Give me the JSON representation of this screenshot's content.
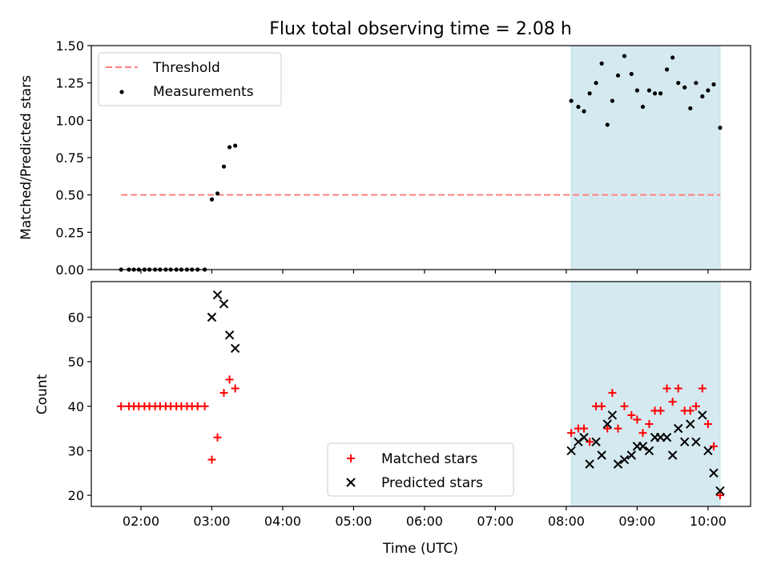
{
  "title": "Flux total observing time = 2.08 h",
  "chart_data": [
    {
      "type": "scatter",
      "panel": "top",
      "title": "Flux total observing time = 2.08 h",
      "ylabel": "Matched/Predicted stars",
      "xlabel": "",
      "x_ticks": [
        "02:00",
        "03:00",
        "04:00",
        "05:00",
        "06:00",
        "07:00",
        "08:00",
        "09:00",
        "10:00"
      ],
      "x_tick_hours": [
        2,
        3,
        4,
        5,
        6,
        7,
        8,
        9,
        10
      ],
      "xlim_hours": [
        1.3,
        10.6
      ],
      "ylim": [
        0,
        1.5
      ],
      "y_ticks": [
        "0.00",
        "0.25",
        "0.50",
        "0.75",
        "1.00",
        "1.25",
        "1.50"
      ],
      "y_tick_values": [
        0,
        0.25,
        0.5,
        0.75,
        1.0,
        1.25,
        1.5
      ],
      "shaded_region_hours": [
        8.07,
        10.17
      ],
      "shaded_color": "#d5eaf0",
      "threshold": {
        "name": "Threshold",
        "value": 0.5,
        "x_hours": [
          1.72,
          10.17
        ],
        "color": "#ff7f7f",
        "style": "dashed"
      },
      "legend": {
        "placement": "top-left",
        "entries": [
          "Threshold",
          "Measurements"
        ]
      },
      "series": [
        {
          "name": "Measurements",
          "color": "#000000",
          "marker": "dot",
          "points": [
            [
              1.72,
              0.0
            ],
            [
              1.83,
              0.0
            ],
            [
              1.9,
              0.0
            ],
            [
              1.97,
              0.0
            ],
            [
              2.05,
              0.0
            ],
            [
              2.12,
              0.0
            ],
            [
              2.2,
              0.0
            ],
            [
              2.27,
              0.0
            ],
            [
              2.35,
              0.0
            ],
            [
              2.42,
              0.0
            ],
            [
              2.5,
              0.0
            ],
            [
              2.57,
              0.0
            ],
            [
              2.65,
              0.0
            ],
            [
              2.72,
              0.0
            ],
            [
              2.8,
              0.0
            ],
            [
              2.9,
              0.0
            ],
            [
              3.0,
              0.47
            ],
            [
              3.08,
              0.51
            ],
            [
              3.17,
              0.69
            ],
            [
              3.25,
              0.82
            ],
            [
              3.33,
              0.83
            ],
            [
              8.07,
              1.13
            ],
            [
              8.17,
              1.09
            ],
            [
              8.25,
              1.06
            ],
            [
              8.33,
              1.18
            ],
            [
              8.42,
              1.25
            ],
            [
              8.5,
              1.38
            ],
            [
              8.58,
              0.97
            ],
            [
              8.65,
              1.13
            ],
            [
              8.73,
              1.3
            ],
            [
              8.82,
              1.43
            ],
            [
              8.92,
              1.31
            ],
            [
              9.0,
              1.2
            ],
            [
              9.08,
              1.09
            ],
            [
              9.17,
              1.2
            ],
            [
              9.25,
              1.18
            ],
            [
              9.33,
              1.18
            ],
            [
              9.42,
              1.34
            ],
            [
              9.5,
              1.42
            ],
            [
              9.58,
              1.25
            ],
            [
              9.67,
              1.22
            ],
            [
              9.75,
              1.08
            ],
            [
              9.83,
              1.25
            ],
            [
              9.92,
              1.16
            ],
            [
              10.0,
              1.2
            ],
            [
              10.08,
              1.24
            ],
            [
              10.17,
              0.95
            ]
          ]
        }
      ]
    },
    {
      "type": "scatter",
      "panel": "bottom",
      "xlabel": "Time (UTC)",
      "ylabel": "Count",
      "x_ticks": [
        "02:00",
        "03:00",
        "04:00",
        "05:00",
        "06:00",
        "07:00",
        "08:00",
        "09:00",
        "10:00"
      ],
      "x_tick_hours": [
        2,
        3,
        4,
        5,
        6,
        7,
        8,
        9,
        10
      ],
      "xlim_hours": [
        1.3,
        10.6
      ],
      "ylim": [
        17.5,
        68
      ],
      "y_ticks": [
        "20",
        "30",
        "40",
        "50",
        "60"
      ],
      "y_tick_values": [
        20,
        30,
        40,
        50,
        60
      ],
      "shaded_region_hours": [
        8.07,
        10.17
      ],
      "shaded_color": "#d5eaf0",
      "legend": {
        "placement": "lower-center",
        "entries": [
          "Matched stars",
          "Predicted stars"
        ]
      },
      "series": [
        {
          "name": "Matched stars",
          "color": "#ff0000",
          "marker": "plus",
          "points": [
            [
              1.72,
              40
            ],
            [
              1.83,
              40
            ],
            [
              1.9,
              40
            ],
            [
              1.97,
              40
            ],
            [
              2.05,
              40
            ],
            [
              2.12,
              40
            ],
            [
              2.2,
              40
            ],
            [
              2.27,
              40
            ],
            [
              2.35,
              40
            ],
            [
              2.42,
              40
            ],
            [
              2.5,
              40
            ],
            [
              2.57,
              40
            ],
            [
              2.65,
              40
            ],
            [
              2.72,
              40
            ],
            [
              2.8,
              40
            ],
            [
              2.9,
              40
            ],
            [
              3.0,
              28
            ],
            [
              3.08,
              33
            ],
            [
              3.17,
              43
            ],
            [
              3.25,
              46
            ],
            [
              3.33,
              44
            ],
            [
              8.07,
              34
            ],
            [
              8.17,
              35
            ],
            [
              8.25,
              35
            ],
            [
              8.33,
              32
            ],
            [
              8.42,
              40
            ],
            [
              8.5,
              40
            ],
            [
              8.58,
              35
            ],
            [
              8.65,
              43
            ],
            [
              8.73,
              35
            ],
            [
              8.82,
              40
            ],
            [
              8.92,
              38
            ],
            [
              9.0,
              37
            ],
            [
              9.08,
              34
            ],
            [
              9.17,
              36
            ],
            [
              9.25,
              39
            ],
            [
              9.33,
              39
            ],
            [
              9.42,
              44
            ],
            [
              9.5,
              41
            ],
            [
              9.58,
              44
            ],
            [
              9.67,
              39
            ],
            [
              9.75,
              39
            ],
            [
              9.83,
              40
            ],
            [
              9.92,
              44
            ],
            [
              10.0,
              36
            ],
            [
              10.08,
              31
            ],
            [
              10.17,
              20
            ]
          ]
        },
        {
          "name": "Predicted stars",
          "color": "#000000",
          "marker": "x",
          "points": [
            [
              3.0,
              60
            ],
            [
              3.08,
              65
            ],
            [
              3.17,
              63
            ],
            [
              3.25,
              56
            ],
            [
              3.33,
              53
            ],
            [
              8.07,
              30
            ],
            [
              8.17,
              32
            ],
            [
              8.25,
              33
            ],
            [
              8.33,
              27
            ],
            [
              8.42,
              32
            ],
            [
              8.5,
              29
            ],
            [
              8.58,
              36
            ],
            [
              8.65,
              38
            ],
            [
              8.73,
              27
            ],
            [
              8.82,
              28
            ],
            [
              8.92,
              29
            ],
            [
              9.0,
              31
            ],
            [
              9.08,
              31
            ],
            [
              9.17,
              30
            ],
            [
              9.25,
              33
            ],
            [
              9.33,
              33
            ],
            [
              9.42,
              33
            ],
            [
              9.5,
              29
            ],
            [
              9.58,
              35
            ],
            [
              9.67,
              32
            ],
            [
              9.75,
              36
            ],
            [
              9.83,
              32
            ],
            [
              9.92,
              38
            ],
            [
              10.0,
              30
            ],
            [
              10.08,
              25
            ],
            [
              10.17,
              21
            ]
          ]
        }
      ]
    }
  ]
}
